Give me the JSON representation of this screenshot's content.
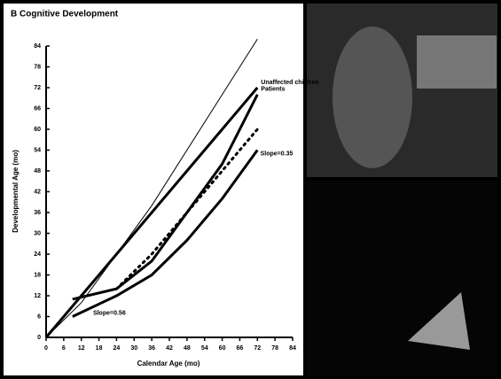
{
  "chart_data": {
    "type": "line",
    "title": "B Cognitive Development",
    "x_label": "Calendar Age (mo)",
    "y_label": "Developmental Age (mo)",
    "xlim": [
      0,
      84
    ],
    "ylim": [
      0,
      84
    ],
    "xticks": [
      0,
      6,
      12,
      18,
      24,
      30,
      36,
      42,
      48,
      54,
      60,
      66,
      72,
      78,
      84
    ],
    "yticks": [
      0,
      6,
      12,
      18,
      24,
      30,
      36,
      42,
      48,
      54,
      60,
      66,
      72,
      78,
      84
    ],
    "series": [
      {
        "color": "#000000",
        "weight": "thin",
        "line_style": "solid",
        "x": [
          0,
          12,
          36,
          72
        ],
        "values": [
          0,
          10,
          38,
          86
        ]
      },
      {
        "name": "Unaffected children",
        "color": "#000000",
        "weight": "thick",
        "line_style": "solid",
        "x": [
          0,
          24,
          48,
          72
        ],
        "values": [
          0,
          24,
          48,
          72
        ]
      },
      {
        "name": "Patients",
        "color": "#000000",
        "weight": "thick",
        "line_style": "solid",
        "x": [
          9,
          24,
          36,
          48,
          60,
          72
        ],
        "values": [
          11,
          14,
          22,
          36,
          50,
          70
        ]
      },
      {
        "color": "#000000",
        "weight": "thick",
        "line_style": "dotted",
        "x": [
          24,
          36,
          48,
          60,
          72
        ],
        "values": [
          14,
          24,
          36,
          48,
          60
        ]
      },
      {
        "color": "#000000",
        "weight": "thick",
        "line_style": "solid",
        "x": [
          9,
          24,
          36,
          48,
          60,
          72
        ],
        "values": [
          6,
          12,
          18,
          28,
          40,
          54
        ]
      }
    ],
    "annotations": [
      {
        "text": "Slope=0.35",
        "x": 73,
        "y": 53
      },
      {
        "text": "Slope=0.56",
        "x": 16,
        "y": 7
      }
    ]
  }
}
